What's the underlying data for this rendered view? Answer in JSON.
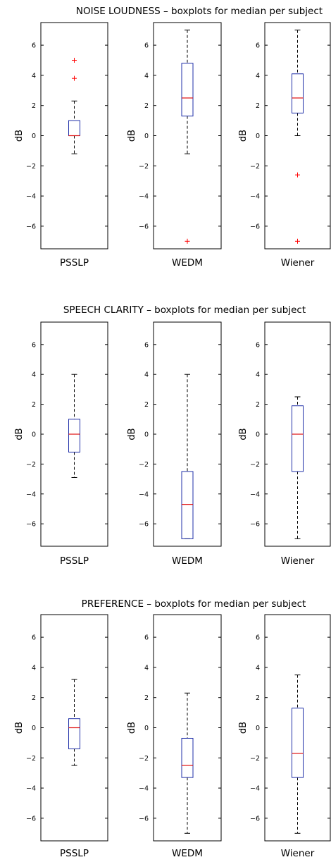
{
  "chart_data": [
    {
      "type": "boxplot",
      "title": "NOISE LOUDNESS – boxplots for median per subject",
      "ylabel": "dB",
      "ylim": [
        -7.5,
        7.5
      ],
      "yticks": [
        -6,
        -4,
        -2,
        0,
        2,
        4,
        6
      ],
      "categories": [
        "PSSLP",
        "WEDM",
        "Wiener"
      ],
      "boxes": [
        {
          "name": "PSSLP",
          "whisker_low": -1.2,
          "q1": 0.0,
          "median": 0.0,
          "q3": 1.0,
          "whisker_high": 2.3,
          "outliers": [
            3.8,
            5.0
          ]
        },
        {
          "name": "WEDM",
          "whisker_low": -1.2,
          "q1": 1.3,
          "median": 2.5,
          "q3": 4.8,
          "whisker_high": 7.0,
          "outliers": [
            -7.0
          ]
        },
        {
          "name": "Wiener",
          "whisker_low": 0.0,
          "q1": 1.5,
          "median": 2.5,
          "q3": 4.1,
          "whisker_high": 7.0,
          "outliers": [
            -2.6,
            -7.0
          ]
        }
      ]
    },
    {
      "type": "boxplot",
      "title": "SPEECH CLARITY – boxplots for median per subject",
      "ylabel": "dB",
      "ylim": [
        -7.5,
        7.5
      ],
      "yticks": [
        -6,
        -4,
        -2,
        0,
        2,
        4,
        6
      ],
      "categories": [
        "PSSLP",
        "WEDM",
        "Wiener"
      ],
      "boxes": [
        {
          "name": "PSSLP",
          "whisker_low": -2.9,
          "q1": -1.2,
          "median": 0.0,
          "q3": 1.0,
          "whisker_high": 4.0,
          "outliers": []
        },
        {
          "name": "WEDM",
          "whisker_low": -7.0,
          "q1": -7.0,
          "median": -4.7,
          "q3": -2.5,
          "whisker_high": 4.0,
          "outliers": []
        },
        {
          "name": "Wiener",
          "whisker_low": -7.0,
          "q1": -2.5,
          "median": 0.0,
          "q3": 1.9,
          "whisker_high": 2.5,
          "outliers": []
        }
      ]
    },
    {
      "type": "boxplot",
      "title": "PREFERENCE – boxplots for median per subject",
      "ylabel": "dB",
      "ylim": [
        -7.5,
        7.5
      ],
      "yticks": [
        -6,
        -4,
        -2,
        0,
        2,
        4,
        6
      ],
      "categories": [
        "PSSLP",
        "WEDM",
        "Wiener"
      ],
      "boxes": [
        {
          "name": "PSSLP",
          "whisker_low": -2.5,
          "q1": -1.4,
          "median": 0.0,
          "q3": 0.6,
          "whisker_high": 3.2,
          "outliers": []
        },
        {
          "name": "WEDM",
          "whisker_low": -7.0,
          "q1": -3.3,
          "median": -2.5,
          "q3": -0.7,
          "whisker_high": 2.3,
          "outliers": []
        },
        {
          "name": "Wiener",
          "whisker_low": -7.0,
          "q1": -3.3,
          "median": -1.7,
          "q3": 1.3,
          "whisker_high": 3.5,
          "outliers": []
        }
      ]
    }
  ],
  "colors": {
    "box": "#1f2fa8",
    "median": "#e01010",
    "outlier": "#ff0000",
    "whisker": "#000000",
    "axis": "#000000"
  }
}
